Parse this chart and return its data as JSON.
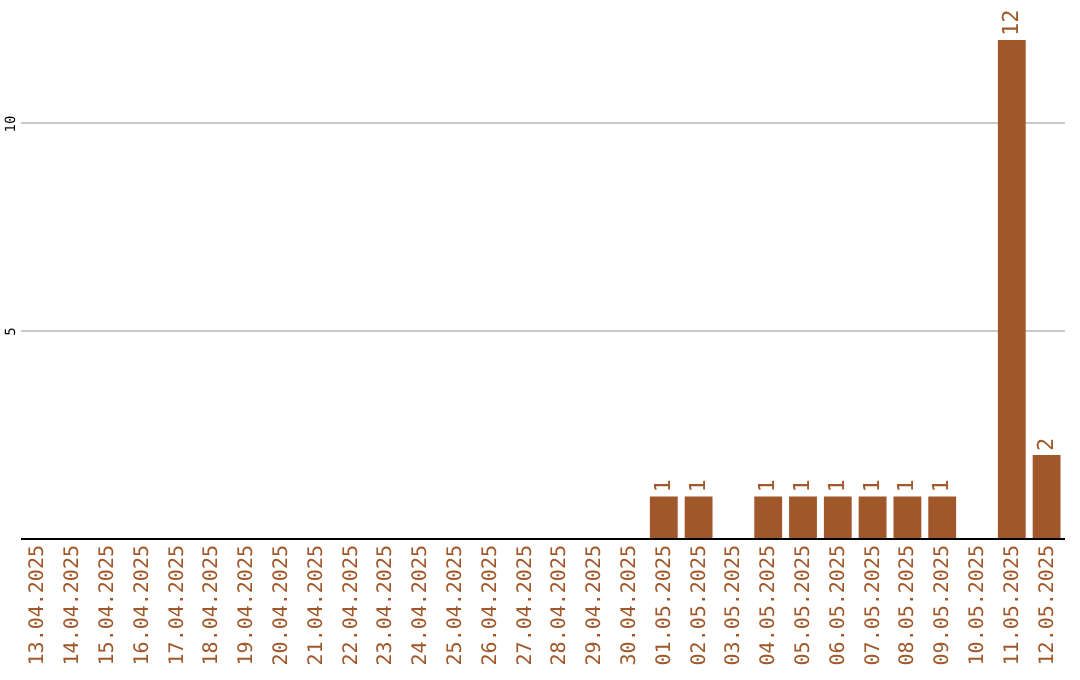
{
  "chart_data": {
    "type": "bar",
    "categories": [
      "13.04.2025",
      "14.04.2025",
      "15.04.2025",
      "16.04.2025",
      "17.04.2025",
      "18.04.2025",
      "19.04.2025",
      "20.04.2025",
      "21.04.2025",
      "22.04.2025",
      "23.04.2025",
      "24.04.2025",
      "25.04.2025",
      "26.04.2025",
      "27.04.2025",
      "28.04.2025",
      "29.04.2025",
      "30.04.2025",
      "01.05.2025",
      "02.05.2025",
      "03.05.2025",
      "04.05.2025",
      "05.05.2025",
      "06.05.2025",
      "07.05.2025",
      "08.05.2025",
      "09.05.2025",
      "10.05.2025",
      "11.05.2025",
      "12.05.2025"
    ],
    "values": [
      0,
      0,
      0,
      0,
      0,
      0,
      0,
      0,
      0,
      0,
      0,
      0,
      0,
      0,
      0,
      0,
      0,
      0,
      1,
      1,
      0,
      1,
      1,
      1,
      1,
      1,
      1,
      0,
      12,
      2
    ],
    "value_labels": [
      null,
      null,
      null,
      null,
      null,
      null,
      null,
      null,
      null,
      null,
      null,
      null,
      null,
      null,
      null,
      null,
      null,
      null,
      "1",
      "1",
      null,
      "1",
      "1",
      "1",
      "1",
      "1",
      "1",
      null,
      "12",
      "2"
    ],
    "color": "#a0582a",
    "ylim": [
      0,
      12
    ],
    "yticks": [
      5,
      10
    ],
    "grid": "y"
  }
}
